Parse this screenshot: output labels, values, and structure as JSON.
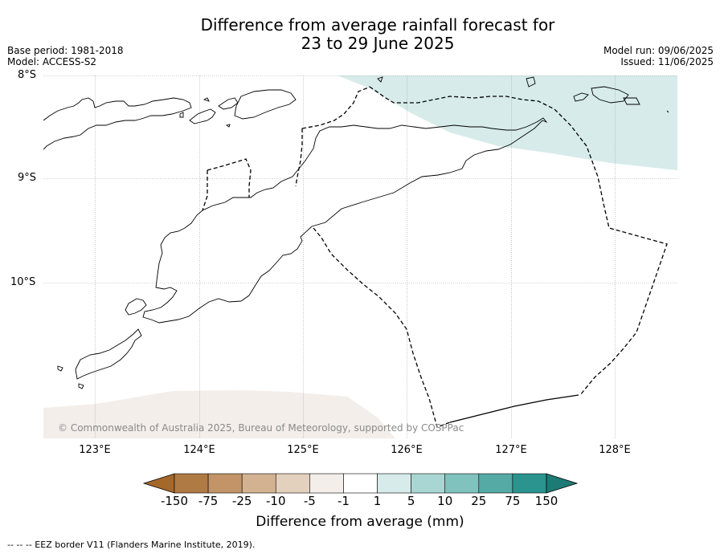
{
  "title_line1": "Difference from average rainfall forecast for",
  "title_line2": "23 to 29 June 2025",
  "base_period": "Base period: 1981-2018",
  "model": "Model: ACCESS-S2",
  "model_run": "Model run: 09/06/2025",
  "issued": "Issued: 11/06/2025",
  "lat_labels": [
    "8°S",
    "9°S",
    "10°S"
  ],
  "lon_labels": [
    "123°E",
    "124°E",
    "125°E",
    "126°E",
    "127°E",
    "128°E"
  ],
  "copyright": "© Commonwealth of Australia 2025, Bureau of Meteorology, supported by COSPPac",
  "colorbar": {
    "title": "Difference from average (mm)",
    "ticks": [
      "-150",
      "-75",
      "-25",
      "-10",
      "-5",
      "-1",
      "1",
      "5",
      "10",
      "25",
      "75",
      "150"
    ],
    "colors": [
      "#a5682b",
      "#b07a45",
      "#c29468",
      "#d3b292",
      "#e4d1bd",
      "#f3eee9",
      "#ffffff",
      "#d6ebea",
      "#a9d6d3",
      "#80c2bd",
      "#56aaa5",
      "#2b948f",
      "#1e7a75"
    ]
  },
  "footer": "--  --  -- EEZ border V11 (Flanders Marine Institute, 2019).",
  "regions": {
    "wet_color": "#d6ebea",
    "dry_color": "#f3eee9"
  }
}
